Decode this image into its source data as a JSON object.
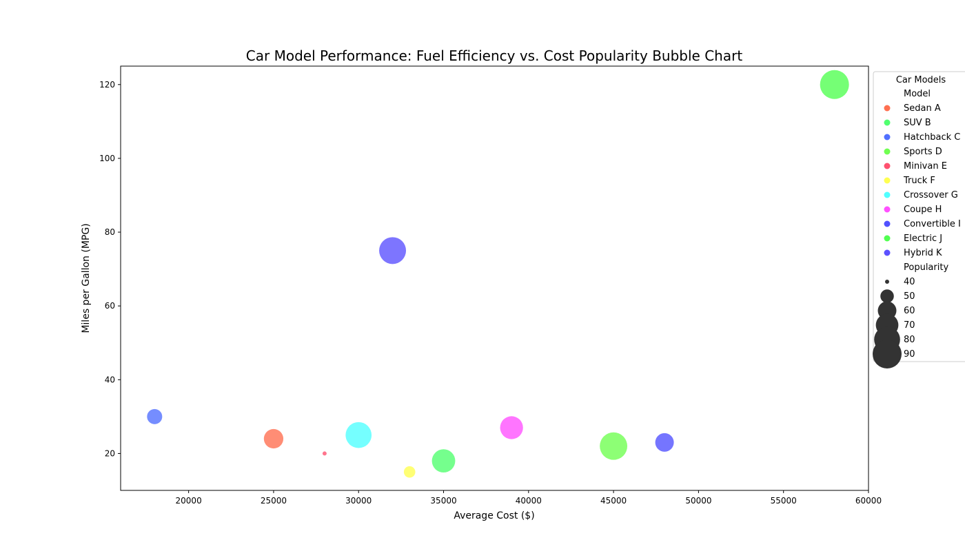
{
  "chart_data": {
    "type": "scatter",
    "title": "Car Model Performance: Fuel Efficiency vs. Cost Popularity Bubble Chart",
    "xlabel": "Average Cost ($)",
    "ylabel": "Miles per Gallon (MPG)",
    "xlim": [
      16000,
      60000
    ],
    "ylim": [
      10,
      125
    ],
    "x_ticks": [
      20000,
      25000,
      30000,
      35000,
      40000,
      45000,
      50000,
      55000,
      60000
    ],
    "y_ticks": [
      20,
      40,
      60,
      80,
      100,
      120
    ],
    "grid": false,
    "legend_position": "outside-right",
    "legend": {
      "title": "Car Models",
      "hue_title": "Model",
      "size_title": "Popularity",
      "size_entries": [
        40,
        50,
        60,
        70,
        80,
        90
      ]
    },
    "series": [
      {
        "name": "Sedan A",
        "color": "#ff5733",
        "x": 25000,
        "y": 24,
        "popularity": 62
      },
      {
        "name": "SUV B",
        "color": "#33ff57",
        "x": 35000,
        "y": 18,
        "popularity": 72
      },
      {
        "name": "Hatchback C",
        "color": "#3357ff",
        "x": 18000,
        "y": 30,
        "popularity": 53
      },
      {
        "name": "Sports D",
        "color": "#57ff33",
        "x": 45000,
        "y": 22,
        "popularity": 85
      },
      {
        "name": "Minivan E",
        "color": "#ff3357",
        "x": 28000,
        "y": 20,
        "popularity": 40
      },
      {
        "name": "Truck F",
        "color": "#ffff33",
        "x": 33000,
        "y": 15,
        "popularity": 47
      },
      {
        "name": "Crossover G",
        "color": "#33ffff",
        "x": 30000,
        "y": 25,
        "popularity": 80
      },
      {
        "name": "Coupe H",
        "color": "#ff33ff",
        "x": 39000,
        "y": 27,
        "popularity": 71
      },
      {
        "name": "Convertible I",
        "color": "#3333ff",
        "x": 48000,
        "y": 23,
        "popularity": 60
      },
      {
        "name": "Electric J",
        "color": "#33ff33",
        "x": 58000,
        "y": 120,
        "popularity": 90
      },
      {
        "name": "Hybrid K",
        "color": "#3f33ff",
        "x": 32000,
        "y": 75,
        "popularity": 83
      }
    ]
  }
}
